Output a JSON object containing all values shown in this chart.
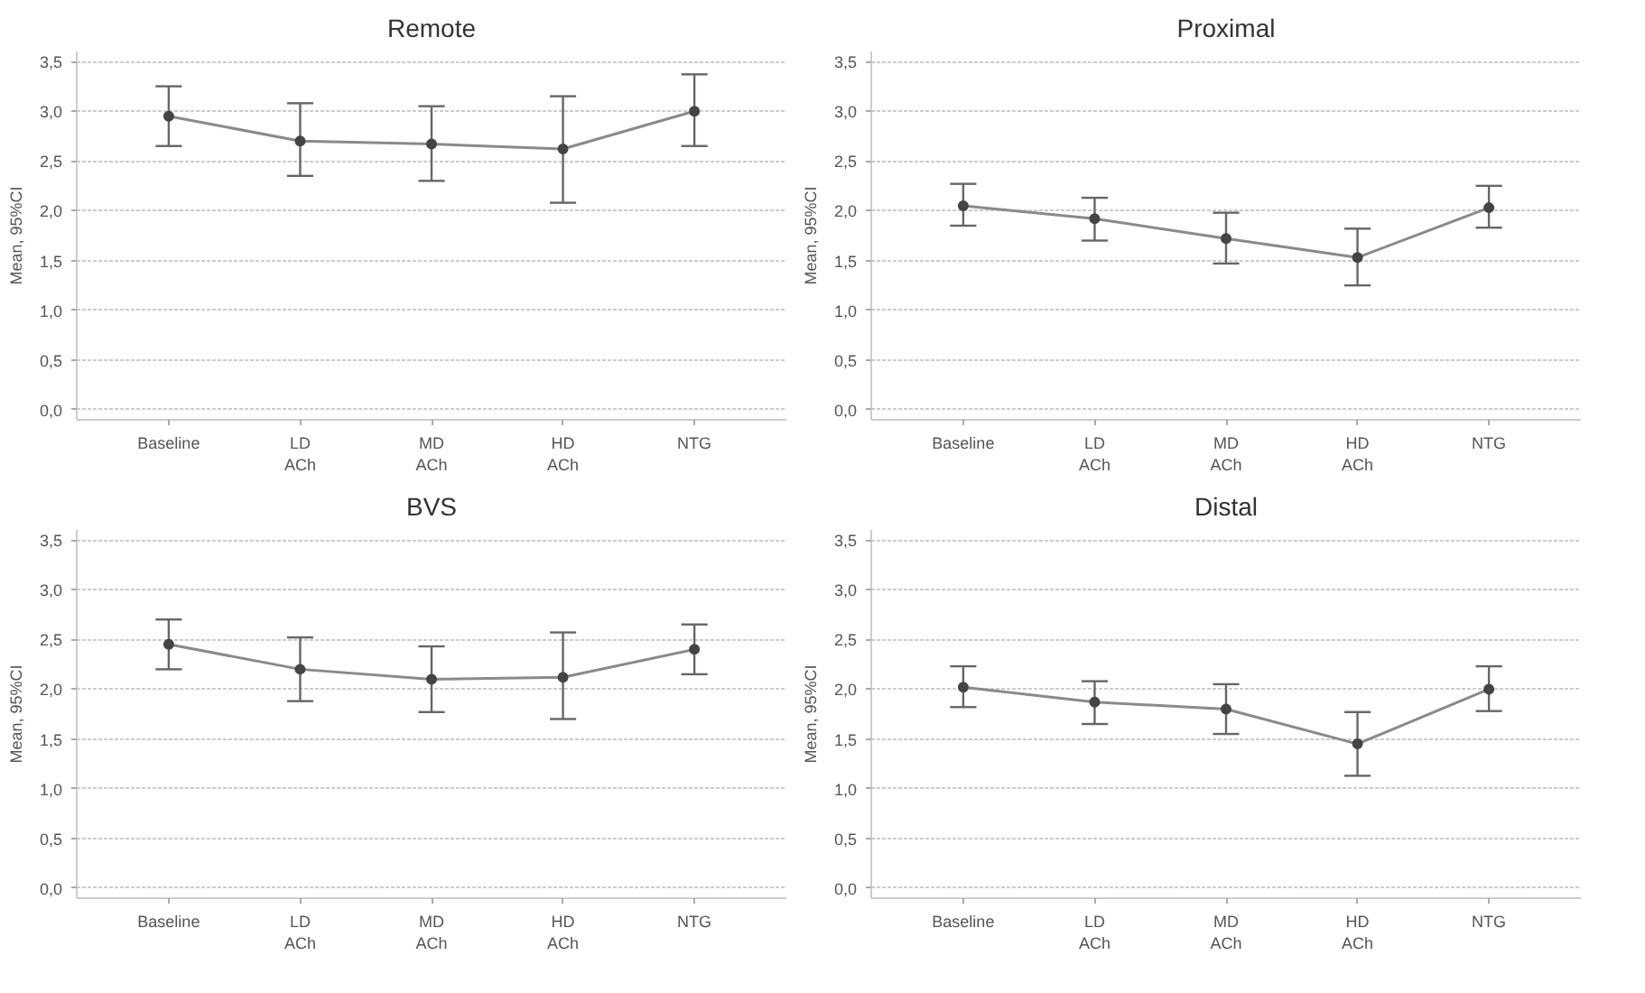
{
  "chart_data": [
    {
      "type": "line",
      "title": "Remote",
      "ylabel": "Mean, 95%CI",
      "categories": [
        "Baseline",
        "LD\nACh",
        "MD\nACh",
        "HD\nACh",
        "NTG"
      ],
      "series": [
        {
          "color": "#8a8a8a",
          "values": [
            2.95,
            2.7,
            2.67,
            2.62,
            3.0
          ],
          "errors": [
            [
              2.65,
              3.25
            ],
            [
              2.35,
              3.08
            ],
            [
              2.3,
              3.05
            ],
            [
              2.08,
              3.15
            ],
            [
              2.65,
              3.37
            ]
          ]
        }
      ],
      "ylim": [
        -0.1,
        3.6
      ],
      "yticks": [
        {
          "value": 0,
          "label": "0,0"
        },
        {
          "value": 0.5,
          "label": "0,5"
        },
        {
          "value": 1,
          "label": "1,0"
        },
        {
          "value": 1.5,
          "label": "1,5"
        },
        {
          "value": 2,
          "label": "2,0"
        },
        {
          "value": 2.5,
          "label": "2,5"
        },
        {
          "value": 3,
          "label": "3,0"
        },
        {
          "value": 3.5,
          "label": "3,5"
        }
      ],
      "grid": "y",
      "marker": "circle",
      "line_style": "solid"
    },
    {
      "type": "line",
      "title": "Proximal",
      "ylabel": "Mean, 95%CI",
      "categories": [
        "Baseline",
        "LD\nACh",
        "MD\nACh",
        "HD\nACh",
        "NTG"
      ],
      "series": [
        {
          "color": "#8a8a8a",
          "values": [
            2.05,
            1.92,
            1.72,
            1.53,
            2.03
          ],
          "errors": [
            [
              1.85,
              2.27
            ],
            [
              1.7,
              2.13
            ],
            [
              1.47,
              1.98
            ],
            [
              1.25,
              1.82
            ],
            [
              1.83,
              2.25
            ]
          ]
        }
      ],
      "ylim": [
        -0.1,
        3.6
      ],
      "yticks": [
        {
          "value": 0,
          "label": "0,0"
        },
        {
          "value": 0.5,
          "label": "0,5"
        },
        {
          "value": 1,
          "label": "1,0"
        },
        {
          "value": 1.5,
          "label": "1,5"
        },
        {
          "value": 2,
          "label": "2,0"
        },
        {
          "value": 2.5,
          "label": "2,5"
        },
        {
          "value": 3,
          "label": "3,0"
        },
        {
          "value": 3.5,
          "label": "3,5"
        }
      ],
      "grid": "y",
      "marker": "circle",
      "line_style": "solid"
    },
    {
      "type": "line",
      "title": "BVS",
      "ylabel": "Mean, 95%CI",
      "categories": [
        "Baseline",
        "LD\nACh",
        "MD\nACh",
        "HD\nACh",
        "NTG"
      ],
      "series": [
        {
          "color": "#8a8a8a",
          "values": [
            2.45,
            2.2,
            2.1,
            2.12,
            2.4
          ],
          "errors": [
            [
              2.2,
              2.7
            ],
            [
              1.88,
              2.52
            ],
            [
              1.77,
              2.43
            ],
            [
              1.7,
              2.57
            ],
            [
              2.15,
              2.65
            ]
          ]
        }
      ],
      "ylim": [
        -0.1,
        3.6
      ],
      "yticks": [
        {
          "value": 0,
          "label": "0,0"
        },
        {
          "value": 0.5,
          "label": "0,5"
        },
        {
          "value": 1,
          "label": "1,0"
        },
        {
          "value": 1.5,
          "label": "1,5"
        },
        {
          "value": 2,
          "label": "2,0"
        },
        {
          "value": 2.5,
          "label": "2,5"
        },
        {
          "value": 3,
          "label": "3,0"
        },
        {
          "value": 3.5,
          "label": "3,5"
        }
      ],
      "grid": "y",
      "marker": "circle",
      "line_style": "solid"
    },
    {
      "type": "line",
      "title": "Distal",
      "ylabel": "Mean, 95%CI",
      "categories": [
        "Baseline",
        "LD\nACh",
        "MD\nACh",
        "HD\nACh",
        "NTG"
      ],
      "series": [
        {
          "color": "#8a8a8a",
          "values": [
            2.02,
            1.87,
            1.8,
            1.45,
            2.0
          ],
          "errors": [
            [
              1.82,
              2.23
            ],
            [
              1.65,
              2.08
            ],
            [
              1.55,
              2.05
            ],
            [
              1.13,
              1.77
            ],
            [
              1.78,
              2.23
            ]
          ]
        }
      ],
      "ylim": [
        -0.1,
        3.6
      ],
      "yticks": [
        {
          "value": 0,
          "label": "0,0"
        },
        {
          "value": 0.5,
          "label": "0,5"
        },
        {
          "value": 1,
          "label": "1,0"
        },
        {
          "value": 1.5,
          "label": "1,5"
        },
        {
          "value": 2,
          "label": "2,0"
        },
        {
          "value": 2.5,
          "label": "2,5"
        },
        {
          "value": 3,
          "label": "3,0"
        },
        {
          "value": 3.5,
          "label": "3,5"
        }
      ],
      "grid": "y",
      "marker": "circle",
      "line_style": "solid"
    }
  ]
}
